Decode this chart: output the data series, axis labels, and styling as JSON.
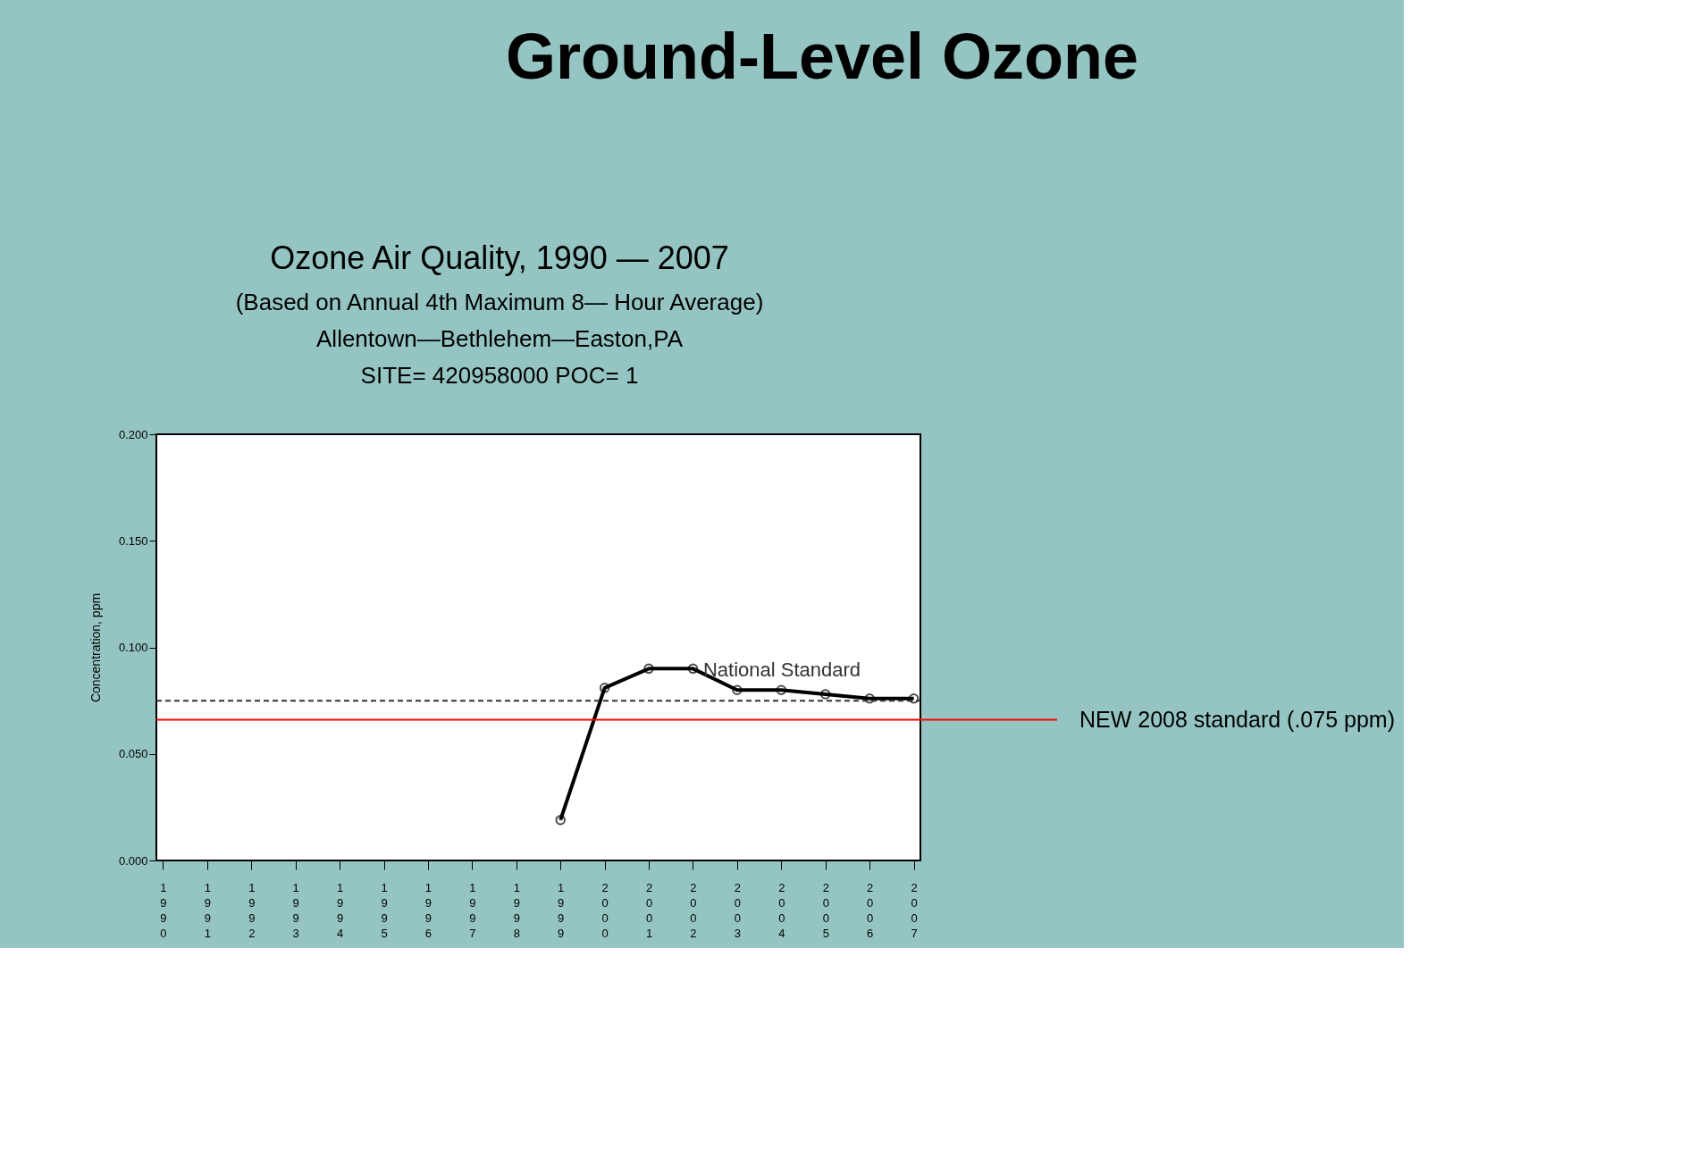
{
  "chart_data": {
    "type": "line",
    "title": "Ozone Air Quality, 1990 — 2007",
    "subtitle": "(Based on Annual 4th Maximum 8— Hour Average)",
    "annotations": [
      "Ground-Level Ozone",
      "Allentown—Bethlehem—Easton,PA",
      "SITE= 420958000 POC= 1"
    ],
    "ylabel": "Concentration, ppm",
    "categories": [
      "1990",
      "1991",
      "1992",
      "1993",
      "1994",
      "1995",
      "1996",
      "1997",
      "1998",
      "1999",
      "2000",
      "2001",
      "2002",
      "2003",
      "2004",
      "2005",
      "2006",
      "2007"
    ],
    "series": [
      {
        "color": "#000000",
        "values": [
          null,
          null,
          null,
          null,
          null,
          null,
          null,
          null,
          null,
          0.019,
          0.081,
          0.09,
          0.09,
          0.08,
          0.08,
          0.078,
          0.076,
          0.076
        ]
      }
    ],
    "ylim": [
      0,
      0.2
    ],
    "yticks": [
      {
        "value": 0,
        "label": "0.000"
      },
      {
        "value": 0.05,
        "label": "0.050"
      },
      {
        "value": 0.1,
        "label": "0.100"
      },
      {
        "value": 0.15,
        "label": "0.150"
      },
      {
        "value": 0.2,
        "label": "0.200"
      }
    ],
    "ref_lines": [
      {
        "axis": "y",
        "value": 0.075,
        "label": "National Standard",
        "color": "#333333",
        "line_style": "dashed"
      },
      {
        "axis": "y",
        "value": 0.066,
        "label": "NEW 2008 standard (.075 ppm)",
        "color": "#ff0000",
        "line_style": "solid"
      }
    ],
    "marker": "circle",
    "line_style": "solid",
    "grid": false
  }
}
